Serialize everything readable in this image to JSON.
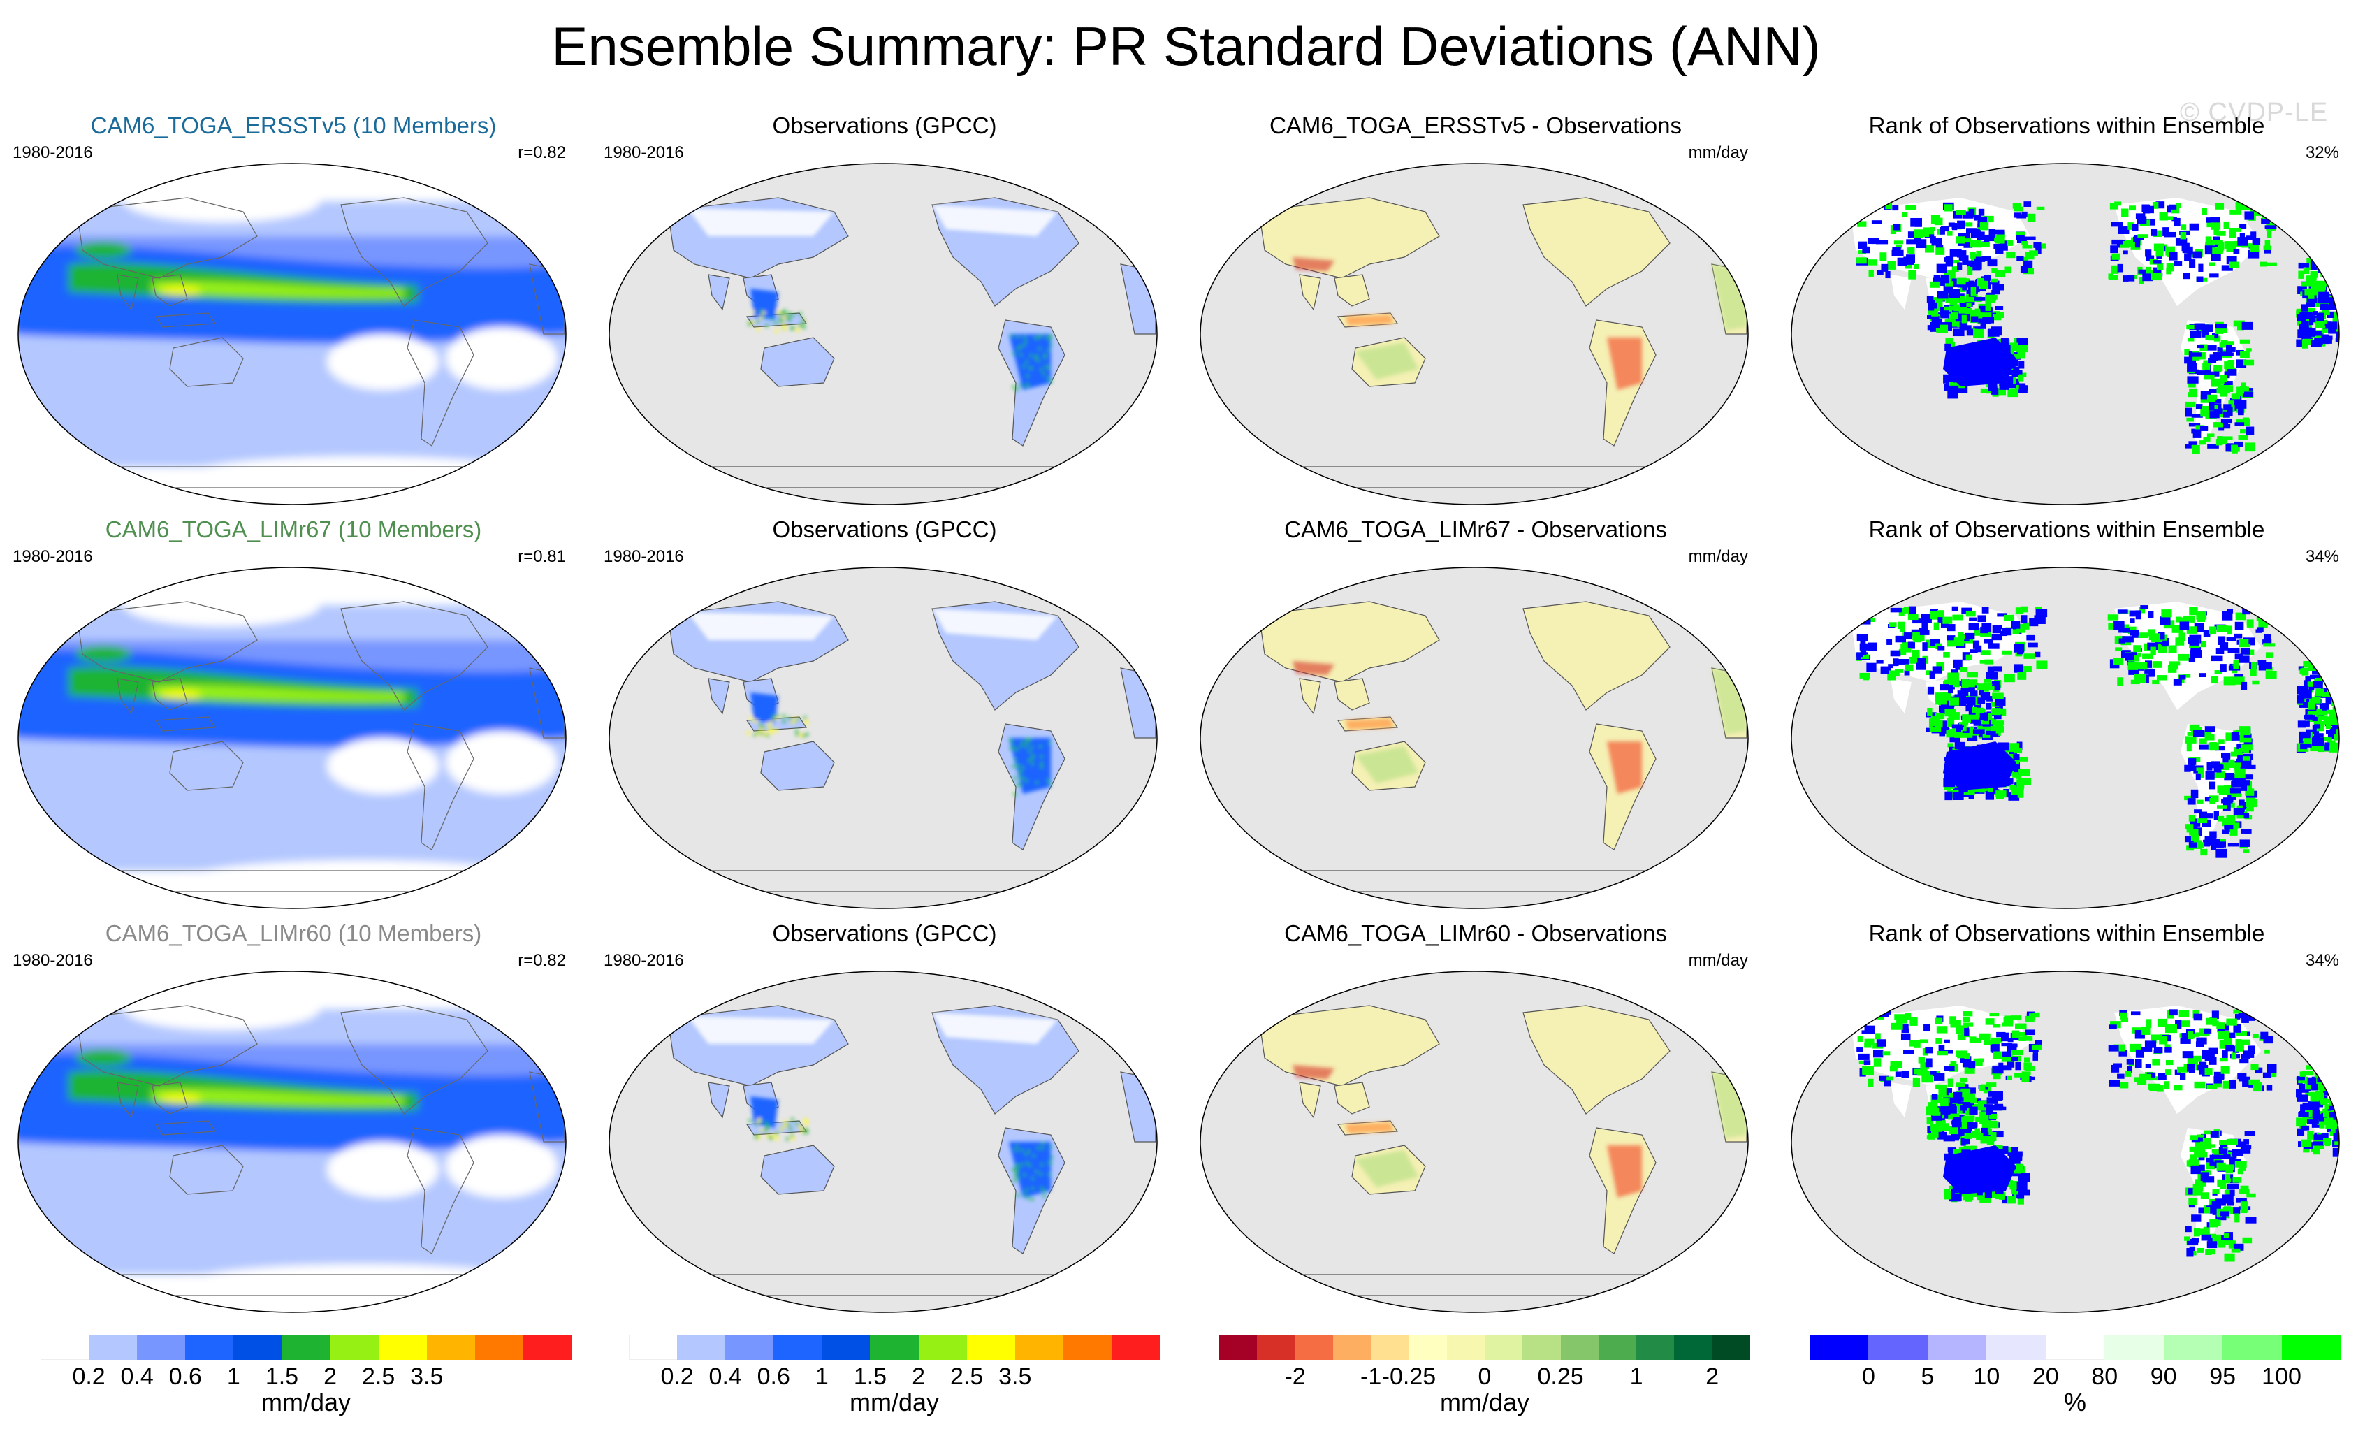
{
  "title": "Ensemble Summary: PR Standard Deviations (ANN)",
  "watermark": "© CVDP-LE",
  "rows": [
    {
      "model": {
        "title": "CAM6_TOGA_ERSSTv5 (10 Members)",
        "title_color": "#1a6a9a",
        "period": "1980-2016",
        "corr": "r=0.82"
      },
      "obs": {
        "title": "Observations (GPCC)",
        "period": "1980-2016"
      },
      "diff": {
        "title": "CAM6_TOGA_ERSSTv5 - Observations",
        "unit": "mm/day"
      },
      "rank": {
        "title": "Rank of Observations within Ensemble",
        "pct": "32%"
      }
    },
    {
      "model": {
        "title": "CAM6_TOGA_LIMr67 (10 Members)",
        "title_color": "#4f8f4f",
        "period": "1980-2016",
        "corr": "r=0.81"
      },
      "obs": {
        "title": "Observations (GPCC)",
        "period": "1980-2016"
      },
      "diff": {
        "title": "CAM6_TOGA_LIMr67 - Observations",
        "unit": "mm/day"
      },
      "rank": {
        "title": "Rank of Observations within Ensemble",
        "pct": "34%"
      }
    },
    {
      "model": {
        "title": "CAM6_TOGA_LIMr60 (10 Members)",
        "title_color": "#8a8a8a",
        "period": "1980-2016",
        "corr": "r=0.82"
      },
      "obs": {
        "title": "Observations (GPCC)",
        "period": "1980-2016"
      },
      "diff": {
        "title": "CAM6_TOGA_LIMr60 - Observations",
        "unit": "mm/day"
      },
      "rank": {
        "title": "Rank of Observations within Ensemble",
        "pct": "34%"
      }
    }
  ],
  "colorbars": [
    {
      "unit": "mm/day",
      "colors": [
        "#ffffff",
        "#b4c8ff",
        "#7896ff",
        "#1e64ff",
        "#0050e6",
        "#1eb432",
        "#96f014",
        "#ffff00",
        "#ffb400",
        "#ff7800",
        "#ff1e1e"
      ],
      "ticks": [
        "0.2",
        "0.4",
        "0.6",
        "1",
        "1.5",
        "2",
        "2.5",
        "3.5"
      ]
    },
    {
      "unit": "mm/day",
      "colors": [
        "#ffffff",
        "#b4c8ff",
        "#7896ff",
        "#1e64ff",
        "#0050e6",
        "#1eb432",
        "#96f014",
        "#ffff00",
        "#ffb400",
        "#ff7800",
        "#ff1e1e"
      ],
      "ticks": [
        "0.2",
        "0.4",
        "0.6",
        "1",
        "1.5",
        "2",
        "2.5",
        "3.5"
      ]
    },
    {
      "unit": "mm/day",
      "colors": [
        "#a50026",
        "#d73027",
        "#f46d43",
        "#fdae61",
        "#fee090",
        "#ffffbf",
        "#f7f7b0",
        "#e0f3a0",
        "#b8e186",
        "#86c66a",
        "#4dac4d",
        "#228b45",
        "#006837",
        "#004a24"
      ],
      "ticks": [
        "-2",
        "-1",
        "-0.25",
        "0",
        "0.25",
        "1",
        "2"
      ]
    },
    {
      "unit": "%",
      "colors": [
        "#0000ff",
        "#6464ff",
        "#b4b4ff",
        "#e6e6ff",
        "#ffffff",
        "#e6ffe6",
        "#b4ffb4",
        "#78ff78",
        "#00ff00"
      ],
      "ticks": [
        "0",
        "5",
        "10",
        "20",
        "80",
        "90",
        "95",
        "100"
      ]
    }
  ]
}
